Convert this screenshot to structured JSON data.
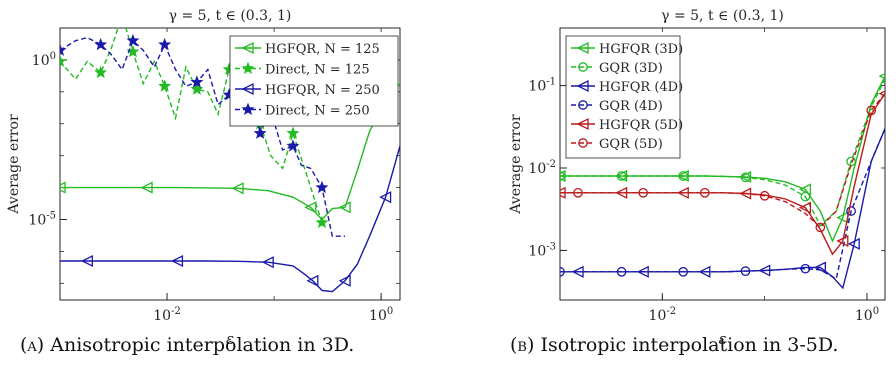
{
  "chart_data": [
    {
      "type": "line",
      "title": "γ = 5, t ∈ (0.3, 1)",
      "xlabel": "ε",
      "ylabel": "Average error",
      "xscale": "log",
      "yscale": "log",
      "xlim": [
        0.001,
        1.5
      ],
      "ylim": [
        3e-08,
        10
      ],
      "xticks": [
        0.01,
        1
      ],
      "xtick_labels": [
        "10^-2",
        "10^0"
      ],
      "yticks": [
        1e-05,
        1
      ],
      "ytick_labels": [
        "10^-5",
        "10^0"
      ],
      "legend_position": "top-right",
      "caption_tag": "(a)",
      "caption": "Anisotropic interpolation in 3D.",
      "series": [
        {
          "name": "HGFQR, N = 125",
          "color": "#22bb22",
          "dash": false,
          "marker": "triangle-left",
          "x": [
            0.001,
            0.0018,
            0.0034,
            0.0065,
            0.0125,
            0.024,
            0.046,
            0.088,
            0.15,
            0.22,
            0.28,
            0.35,
            0.46,
            0.6,
            0.78,
            1.1,
            1.5
          ],
          "y": [
            0.0001,
            0.0001,
            0.0001,
            0.0001,
            0.0001,
            9.8e-05,
            9.5e-05,
            8e-05,
            5e-05,
            2.4e-05,
            1e-05,
            2.2e-05,
            2.4e-05,
            0.00035,
            0.0058,
            0.05,
            0.18
          ]
        },
        {
          "name": "Direct, N = 125",
          "color": "#22bb22",
          "dash": true,
          "marker": "star",
          "x": [
            0.001,
            0.0014,
            0.0018,
            0.0024,
            0.003,
            0.0038,
            0.0048,
            0.006,
            0.0076,
            0.0095,
            0.012,
            0.015,
            0.019,
            0.024,
            0.03,
            0.038,
            0.047,
            0.059,
            0.074,
            0.093,
            0.12,
            0.15,
            0.18,
            0.22,
            0.28
          ],
          "y": [
            0.9,
            0.25,
            0.9,
            0.4,
            2.2,
            25,
            1.8,
            0.18,
            0.9,
            0.15,
            0.015,
            0.6,
            0.12,
            0.1,
            0.02,
            0.5,
            0.05,
            0.02,
            0.01,
            0.001,
            0.0004,
            0.005,
            0.0008,
            0.0001,
            8e-06
          ]
        },
        {
          "name": "HGFQR, N = 250",
          "color": "#1a1aaa",
          "dash": false,
          "marker": "triangle-left",
          "x": [
            0.001,
            0.0018,
            0.0034,
            0.0065,
            0.0125,
            0.024,
            0.046,
            0.088,
            0.15,
            0.19,
            0.23,
            0.28,
            0.35,
            0.46,
            0.6,
            0.78,
            1.1,
            1.5
          ],
          "y": [
            5e-07,
            5e-07,
            5e-07,
            5e-07,
            5e-07,
            5e-07,
            4.9e-07,
            4.6e-07,
            3.5e-07,
            2e-07,
            1.2e-07,
            6e-08,
            5.5e-08,
            1.2e-07,
            4e-07,
            3e-06,
            5e-05,
            0.002
          ]
        },
        {
          "name": "Direct, N = 250",
          "color": "#1a1aaa",
          "dash": true,
          "marker": "star",
          "x": [
            0.001,
            0.0014,
            0.0018,
            0.0024,
            0.003,
            0.0038,
            0.0048,
            0.006,
            0.0076,
            0.0095,
            0.012,
            0.015,
            0.019,
            0.024,
            0.03,
            0.038,
            0.047,
            0.059,
            0.074,
            0.093,
            0.12,
            0.15,
            0.18,
            0.22,
            0.28,
            0.35,
            0.46
          ],
          "y": [
            2,
            4,
            5,
            3,
            1.5,
            0.5,
            4,
            2,
            0.6,
            3,
            0.5,
            0.15,
            0.2,
            0.5,
            0.04,
            0.08,
            0.015,
            0.2,
            0.005,
            0.025,
            0.0015,
            0.002,
            0.0005,
            0.0004,
            0.0001,
            3e-06,
            3e-06
          ]
        }
      ]
    },
    {
      "type": "line",
      "title": "γ = 5, t ∈ (0.3, 1)",
      "xlabel": "ε",
      "ylabel": "Average error",
      "xscale": "log",
      "yscale": "log",
      "xlim": [
        0.001,
        1.5
      ],
      "ylim": [
        0.00025,
        0.5
      ],
      "xticks": [
        0.01,
        1
      ],
      "xtick_labels": [
        "10^-2",
        "10^0"
      ],
      "yticks": [
        0.001,
        0.01,
        0.1
      ],
      "ytick_labels": [
        "10^-3",
        "10^-2",
        "10^-1"
      ],
      "legend_position": "top-left",
      "caption_tag": "(b)",
      "caption": "Isotropic interpolation in 3-5D.",
      "series": [
        {
          "name": "HGFQR (3D)",
          "color": "#22bb22",
          "dash": false,
          "marker": "triangle-left",
          "x": [
            0.001,
            0.0015,
            0.0025,
            0.004,
            0.0065,
            0.01,
            0.016,
            0.026,
            0.04,
            0.065,
            0.1,
            0.16,
            0.25,
            0.35,
            0.46,
            0.58,
            0.75,
            1.1,
            1.5
          ],
          "y": [
            0.008,
            0.008,
            0.008,
            0.008,
            0.008,
            0.008,
            0.008,
            0.008,
            0.0079,
            0.0078,
            0.0075,
            0.0068,
            0.0055,
            0.003,
            0.0013,
            0.0025,
            0.01,
            0.06,
            0.13
          ]
        },
        {
          "name": "GQR (3D)",
          "color": "#22bb22",
          "dash": true,
          "marker": "circle",
          "x": [
            0.001,
            0.0015,
            0.0025,
            0.004,
            0.0065,
            0.01,
            0.016,
            0.026,
            0.04,
            0.065,
            0.1,
            0.16,
            0.25,
            0.35,
            0.5,
            0.7,
            1.1,
            1.5
          ],
          "y": [
            0.008,
            0.008,
            0.008,
            0.008,
            0.008,
            0.008,
            0.008,
            0.008,
            0.0079,
            0.0077,
            0.0072,
            0.0062,
            0.0045,
            0.002,
            0.003,
            0.012,
            0.055,
            0.12
          ]
        },
        {
          "name": "HGFQR (4D)",
          "color": "#1a1aaa",
          "dash": false,
          "marker": "triangle-left",
          "x": [
            0.001,
            0.0015,
            0.0025,
            0.004,
            0.0065,
            0.01,
            0.016,
            0.026,
            0.04,
            0.065,
            0.1,
            0.16,
            0.25,
            0.35,
            0.46,
            0.58,
            0.75,
            1.1,
            1.5
          ],
          "y": [
            0.00055,
            0.00055,
            0.00055,
            0.00055,
            0.00055,
            0.00055,
            0.00055,
            0.00055,
            0.00055,
            0.00056,
            0.00057,
            0.00059,
            0.00062,
            0.00062,
            0.00048,
            0.00035,
            0.0012,
            0.012,
            0.03
          ]
        },
        {
          "name": "GQR (4D)",
          "color": "#1a1aaa",
          "dash": true,
          "marker": "circle",
          "x": [
            0.001,
            0.0015,
            0.0025,
            0.004,
            0.0065,
            0.01,
            0.016,
            0.026,
            0.04,
            0.065,
            0.1,
            0.16,
            0.25,
            0.35,
            0.5,
            0.7,
            1.1,
            1.5
          ],
          "y": [
            0.00055,
            0.00055,
            0.00055,
            0.00055,
            0.00055,
            0.00055,
            0.00055,
            0.00055,
            0.00055,
            0.00056,
            0.00057,
            0.00059,
            0.0006,
            0.00058,
            0.00045,
            0.003,
            0.012,
            0.03
          ]
        },
        {
          "name": "HGFQR (5D)",
          "color": "#bb1a1a",
          "dash": false,
          "marker": "triangle-left",
          "x": [
            0.001,
            0.0015,
            0.0025,
            0.004,
            0.0065,
            0.01,
            0.016,
            0.026,
            0.04,
            0.065,
            0.1,
            0.16,
            0.25,
            0.35,
            0.46,
            0.58,
            0.75,
            1.1,
            1.5
          ],
          "y": [
            0.005,
            0.005,
            0.005,
            0.005,
            0.005,
            0.005,
            0.005,
            0.005,
            0.005,
            0.0049,
            0.0047,
            0.0042,
            0.0033,
            0.0018,
            0.0009,
            0.0013,
            0.006,
            0.045,
            0.08
          ]
        },
        {
          "name": "GQR (5D)",
          "color": "#bb1a1a",
          "dash": true,
          "marker": "circle",
          "x": [
            0.001,
            0.0015,
            0.0025,
            0.004,
            0.0065,
            0.01,
            0.016,
            0.026,
            0.04,
            0.065,
            0.1,
            0.16,
            0.25,
            0.35,
            0.5,
            0.7,
            1.1,
            1.5
          ],
          "y": [
            0.005,
            0.005,
            0.005,
            0.005,
            0.005,
            0.005,
            0.005,
            0.005,
            0.005,
            0.0049,
            0.0046,
            0.0039,
            0.0028,
            0.0019,
            0.003,
            0.011,
            0.05,
            0.08
          ]
        }
      ]
    }
  ]
}
